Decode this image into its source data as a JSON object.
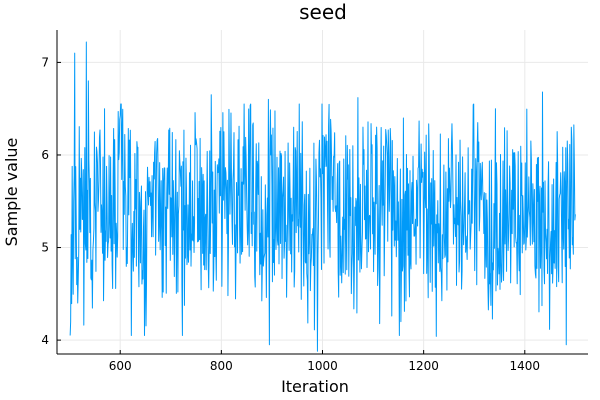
{
  "chart_data": {
    "type": "line",
    "title": "seed",
    "xlabel": "Iteration",
    "ylabel": "Sample value",
    "xlim": [
      475,
      1525
    ],
    "ylim": [
      3.85,
      7.35
    ],
    "xticks": [
      600,
      800,
      1000,
      1200,
      1400
    ],
    "yticks": [
      4,
      5,
      6,
      7
    ],
    "grid": true,
    "legend": "none",
    "series": [
      {
        "color": "#009af9",
        "x_start": 501,
        "x_end": 1500,
        "values": [
          4.2,
          5.4,
          4.7,
          6.1,
          5.3,
          7.1,
          5.7,
          4.9,
          6.1,
          5.2,
          5.8,
          4.6,
          6.3,
          5.1,
          5.6,
          6.8,
          5.2,
          7.2,
          5.5,
          4.8,
          6.2,
          5.0,
          5.9,
          4.4,
          5.7,
          6.6,
          5.1,
          5.5,
          4.9,
          6.0,
          5.3,
          5.8,
          4.5,
          5.2,
          6.1,
          5.6,
          4.8,
          5.9,
          5.1,
          6.4,
          5.3,
          4.6,
          5.7,
          5.0,
          5.5,
          6.0,
          4.9,
          5.4,
          5.2,
          5.8
        ],
        "peaks": [
          {
            "x": 510,
            "v": 7.1
          },
          {
            "x": 533,
            "v": 7.22
          },
          {
            "x": 537,
            "v": 6.8
          },
          {
            "x": 569,
            "v": 6.5
          },
          {
            "x": 780,
            "v": 6.65
          },
          {
            "x": 893,
            "v": 6.6
          },
          {
            "x": 1070,
            "v": 6.62
          },
          {
            "x": 1160,
            "v": 6.4
          },
          {
            "x": 1342,
            "v": 6.5
          },
          {
            "x": 1435,
            "v": 6.68
          },
          {
            "x": 1492,
            "v": 6.3
          }
        ],
        "troughs": [
          {
            "x": 502,
            "v": 4.2
          },
          {
            "x": 622,
            "v": 4.05
          },
          {
            "x": 648,
            "v": 4.05
          },
          {
            "x": 895,
            "v": 3.95
          },
          {
            "x": 990,
            "v": 3.88
          },
          {
            "x": 1155,
            "v": 4.2
          },
          {
            "x": 1225,
            "v": 4.04
          },
          {
            "x": 1482,
            "v": 3.95
          }
        ]
      }
    ]
  }
}
